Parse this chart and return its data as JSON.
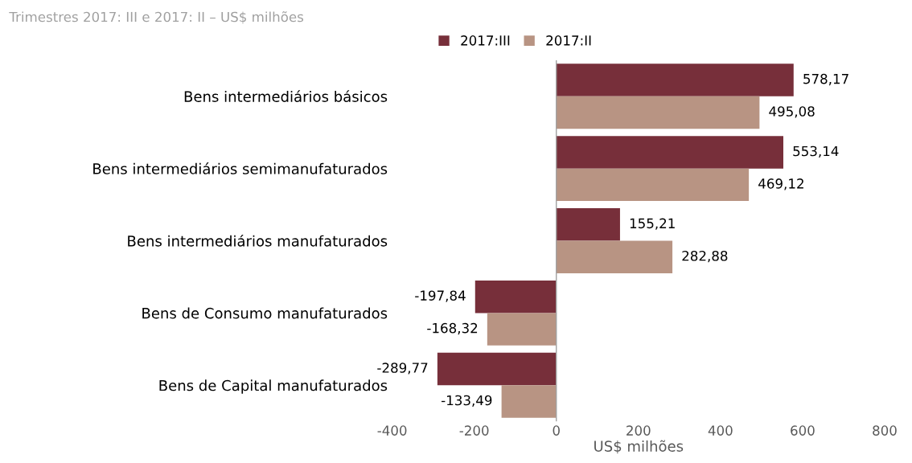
{
  "chart_data": {
    "type": "bar",
    "orientation": "horizontal",
    "title": "Trimestres 2017: III e 2017: II – US$ milhões",
    "xlabel": "US$ milhões",
    "categories": [
      "Bens intermediários básicos",
      "Bens intermediários semimanufaturados",
      "Bens intermediários manufaturados",
      "Bens de Consumo manufaturados",
      "Bens de Capital manufaturados"
    ],
    "series": [
      {
        "name": "2017:III",
        "color": "#772f3a",
        "values": [
          578.17,
          553.14,
          155.21,
          -197.84,
          -289.77
        ],
        "value_labels": [
          "578,17",
          "553,14",
          "155,21",
          "-197,84",
          "-289,77"
        ]
      },
      {
        "name": "2017:II",
        "color": "#b89483",
        "values": [
          495.08,
          469.12,
          282.88,
          -168.32,
          -133.49
        ],
        "value_labels": [
          "495,08",
          "469,12",
          "282,88",
          "-168,32",
          "-133,49"
        ]
      }
    ],
    "xlim": [
      -400,
      800
    ],
    "xticks": [
      -400,
      -200,
      0,
      200,
      400,
      600,
      800
    ],
    "legend": "top",
    "grid": false,
    "ref_lines": [
      {
        "axis": "x",
        "value": 0,
        "color": "#a0a0a0"
      }
    ]
  }
}
